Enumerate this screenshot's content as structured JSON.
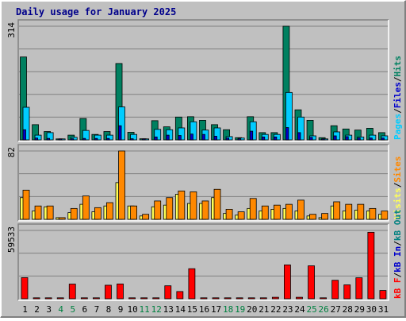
{
  "title": "Daily usage for January 2025",
  "colors": {
    "pages": "#00ccff",
    "files": "#008080",
    "hits": "#008060",
    "visits": "#ffff55",
    "sites": "#ff8800",
    "kb_in": "#0000cc",
    "kb_out": "#008080",
    "kb_f": "#ff0000",
    "weekend_label": "#008040",
    "panel_bg": "#c0c0c0",
    "title": "#00008b"
  },
  "chart_data": [
    {
      "type": "bar",
      "panel": "top",
      "scale_label": "314",
      "ylim": [
        0,
        314
      ],
      "categories": [
        "1",
        "2",
        "3",
        "4",
        "5",
        "6",
        "7",
        "8",
        "9",
        "10",
        "11",
        "12",
        "13",
        "14",
        "15",
        "16",
        "17",
        "18",
        "19",
        "20",
        "21",
        "22",
        "23",
        "24",
        "25",
        "26",
        "27",
        "28",
        "29",
        "30",
        "31"
      ],
      "weekend_categories": [
        "4",
        "5",
        "11",
        "12",
        "18",
        "19",
        "25",
        "26"
      ],
      "legend": [
        "Pages",
        "/",
        "Files",
        "/",
        "Hits"
      ],
      "series": [
        {
          "name": "Hits",
          "values": [
            229,
            42,
            23,
            2,
            13,
            59,
            15,
            23,
            211,
            21,
            3,
            53,
            36,
            63,
            64,
            54,
            42,
            28,
            6,
            64,
            20,
            20,
            314,
            83,
            54,
            6,
            39,
            30,
            27,
            32,
            20
          ]
        },
        {
          "name": "Files",
          "values": [
            90,
            13,
            20,
            1,
            7,
            26,
            13,
            13,
            91,
            15,
            2,
            29,
            28,
            33,
            50,
            27,
            33,
            9,
            5,
            50,
            15,
            15,
            131,
            63,
            11,
            2,
            22,
            13,
            8,
            13,
            11
          ]
        },
        {
          "name": "Pages",
          "values": [
            28,
            5,
            4,
            1,
            3,
            4,
            4,
            4,
            39,
            3,
            1,
            8,
            13,
            12,
            16,
            15,
            10,
            5,
            3,
            24,
            8,
            8,
            34,
            20,
            7,
            2,
            11,
            9,
            5,
            5,
            5
          ]
        }
      ]
    },
    {
      "type": "bar",
      "panel": "middle",
      "scale_label": "82",
      "ylim": [
        0,
        82
      ],
      "categories": [
        "1",
        "2",
        "3",
        "4",
        "5",
        "6",
        "7",
        "8",
        "9",
        "10",
        "11",
        "12",
        "13",
        "14",
        "15",
        "16",
        "17",
        "18",
        "19",
        "20",
        "21",
        "22",
        "23",
        "24",
        "25",
        "26",
        "27",
        "28",
        "29",
        "30",
        "31"
      ],
      "legend": [
        "Visits",
        "/",
        "Sites"
      ],
      "series": [
        {
          "name": "Visits",
          "values": [
            26,
            10,
            15,
            2,
            8,
            18,
            9,
            16,
            44,
            16,
            4,
            15,
            17,
            30,
            19,
            19,
            26,
            7,
            5,
            13,
            10,
            12,
            13,
            10,
            4,
            2,
            16,
            10,
            11,
            10,
            6
          ]
        },
        {
          "name": "Sites",
          "values": [
            35,
            16,
            16,
            2,
            13,
            28,
            14,
            20,
            82,
            16,
            6,
            22,
            26,
            34,
            33,
            22,
            36,
            12,
            9,
            25,
            16,
            17,
            18,
            23,
            6,
            7,
            21,
            18,
            18,
            13,
            10
          ]
        }
      ]
    },
    {
      "type": "bar",
      "panel": "bottom",
      "scale_label": "59533",
      "ylim": [
        0,
        59533
      ],
      "categories": [
        "1",
        "2",
        "3",
        "4",
        "5",
        "6",
        "7",
        "8",
        "9",
        "10",
        "11",
        "12",
        "13",
        "14",
        "15",
        "16",
        "17",
        "18",
        "19",
        "20",
        "21",
        "22",
        "23",
        "24",
        "25",
        "26",
        "27",
        "28",
        "29",
        "30",
        "31"
      ],
      "weekend_categories": [
        "4",
        "5",
        "11",
        "12",
        "18",
        "19",
        "25",
        "26"
      ],
      "legend": [
        "kB F",
        "/",
        "kB In",
        "/",
        "kB Out"
      ],
      "series": [
        {
          "name": "kB F",
          "values": [
            18400,
            0,
            0,
            0,
            12800,
            0,
            0,
            11800,
            12900,
            0,
            0,
            0,
            11300,
            6300,
            26200,
            0,
            0,
            0,
            0,
            0,
            0,
            1300,
            29500,
            1300,
            28700,
            0,
            16100,
            12100,
            18300,
            57900,
            7200
          ]
        }
      ]
    }
  ]
}
